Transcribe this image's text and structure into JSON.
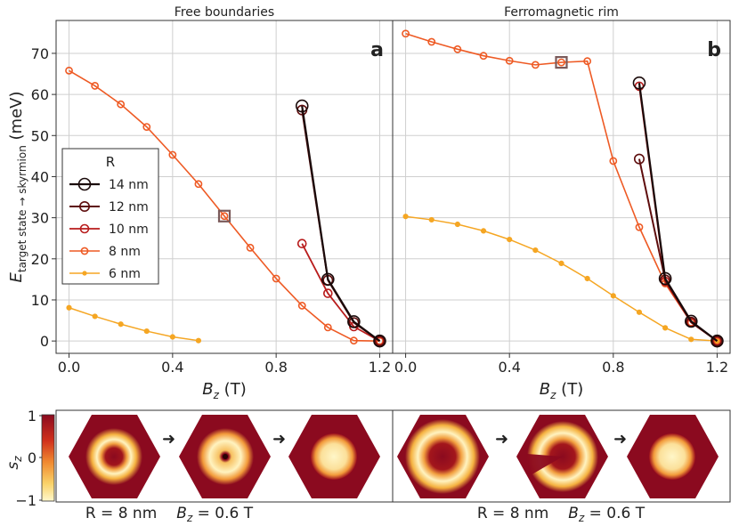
{
  "chart_data": [
    {
      "type": "line",
      "title": "Free boundaries",
      "panel_label": "a",
      "xlabel_main": "B",
      "xlabel_sub": "z",
      "xlabel_unit": " (T)",
      "ylabel_main": "E",
      "ylabel_sub": "target state → skyrmion",
      "ylabel_unit": " (meV)",
      "xlim": [
        -0.05,
        1.25
      ],
      "ylim": [
        -3,
        78
      ],
      "xticks": [
        0.0,
        0.4,
        0.8,
        1.2
      ],
      "xtick_labels": [
        "0.0",
        "0.4",
        "0.8",
        "1.2"
      ],
      "yticks": [
        0,
        10,
        20,
        30,
        40,
        50,
        60,
        70
      ],
      "ytick_labels": [
        "0",
        "10",
        "20",
        "30",
        "40",
        "50",
        "60",
        "70"
      ],
      "grid": true,
      "highlight": {
        "x": 0.6,
        "y": 30.4
      },
      "legend": {
        "title": "R",
        "placement": "center-left",
        "entries": [
          "14 nm",
          "12 nm",
          "10 nm",
          "8 nm",
          "6 nm"
        ]
      },
      "series": [
        {
          "name": "14 nm",
          "color": "#1a0a0a",
          "x": [
            0.9,
            1.0,
            1.1,
            1.2
          ],
          "y": [
            57.2,
            15.0,
            4.7,
            0.0
          ]
        },
        {
          "name": "12 nm",
          "color": "#5e0d0d",
          "x": [
            0.9,
            1.0,
            1.1,
            1.2
          ],
          "y": [
            56.2,
            14.8,
            4.5,
            0.0
          ]
        },
        {
          "name": "10 nm",
          "color": "#b81c1c",
          "x": [
            0.9,
            1.0,
            1.1,
            1.2
          ],
          "y": [
            23.7,
            11.6,
            3.5,
            0.0
          ]
        },
        {
          "name": "8 nm",
          "color": "#ee5a24",
          "x": [
            0.0,
            0.1,
            0.2,
            0.3,
            0.4,
            0.5,
            0.6,
            0.7,
            0.8,
            0.9,
            1.0,
            1.1,
            1.2
          ],
          "y": [
            65.8,
            62.1,
            57.6,
            52.1,
            45.3,
            38.2,
            30.4,
            22.7,
            15.2,
            8.6,
            3.3,
            0.1,
            0.0
          ]
        },
        {
          "name": "6 nm",
          "color": "#f5a623",
          "x": [
            0.0,
            0.1,
            0.2,
            0.3,
            0.4,
            0.5
          ],
          "y": [
            8.1,
            6.0,
            4.1,
            2.4,
            1.0,
            0.1
          ]
        }
      ]
    },
    {
      "type": "line",
      "title": "Ferromagnetic rim",
      "panel_label": "b",
      "xlabel_main": "B",
      "xlabel_sub": "z",
      "xlabel_unit": " (T)",
      "xlim": [
        -0.05,
        1.25
      ],
      "ylim": [
        -3,
        78
      ],
      "xticks": [
        0.0,
        0.4,
        0.8,
        1.2
      ],
      "xtick_labels": [
        "0.0",
        "0.4",
        "0.8",
        "1.2"
      ],
      "grid": true,
      "highlight": {
        "x": 0.6,
        "y": 67.8
      },
      "series": [
        {
          "name": "14 nm",
          "color": "#1a0a0a",
          "x": [
            0.9,
            1.0,
            1.1,
            1.2
          ],
          "y": [
            62.8,
            15.2,
            4.8,
            0.0
          ]
        },
        {
          "name": "12 nm",
          "color": "#5e0d0d",
          "x": [
            0.9,
            1.0,
            1.1,
            1.2
          ],
          "y": [
            44.3,
            14.9,
            4.6,
            0.0
          ]
        },
        {
          "name": "10 nm",
          "color": "#b81c1c",
          "x": [
            0.9,
            1.0,
            1.1,
            1.2
          ],
          "y": [
            62.0,
            14.5,
            4.5,
            0.0
          ]
        },
        {
          "name": "8 nm",
          "color": "#ee5a24",
          "x": [
            0.0,
            0.1,
            0.2,
            0.3,
            0.4,
            0.5,
            0.6,
            0.7,
            0.8,
            0.9,
            1.0,
            1.1,
            1.2
          ],
          "y": [
            74.8,
            72.8,
            71.0,
            69.4,
            68.2,
            67.2,
            67.8,
            68.1,
            43.8,
            27.7,
            14.0,
            4.5,
            0.0
          ]
        },
        {
          "name": "6 nm",
          "color": "#f5a623",
          "x": [
            0.0,
            0.1,
            0.2,
            0.3,
            0.4,
            0.5,
            0.6,
            0.7,
            0.8,
            0.9,
            1.0,
            1.1,
            1.2
          ],
          "y": [
            30.3,
            29.5,
            28.4,
            26.8,
            24.7,
            22.1,
            18.9,
            15.2,
            11.0,
            7.0,
            3.2,
            0.4,
            0.0
          ]
        }
      ]
    },
    {
      "type": "heatmap",
      "colorbar_label_main": "s",
      "colorbar_label_sub": "z",
      "colorbar_ticks": [
        "1",
        "0",
        "−1"
      ],
      "colormap_colors": [
        "#fff5c0",
        "#f5b83a",
        "#e0401a",
        "#8b0a1f"
      ],
      "panels": [
        {
          "caption_left": "R = 8 nm",
          "caption_b_main": "B",
          "caption_b_sub": "z",
          "caption_b_value": " = 0.6 T",
          "snapshots": [
            "target-ring",
            "target-with-core",
            "skyrmion"
          ]
        },
        {
          "caption_left": "R = 8 nm",
          "caption_b_main": "B",
          "caption_b_sub": "z",
          "caption_b_value": " = 0.6 T",
          "snapshots": [
            "target-ring-large",
            "broken-ring",
            "skyrmion"
          ]
        }
      ]
    }
  ]
}
